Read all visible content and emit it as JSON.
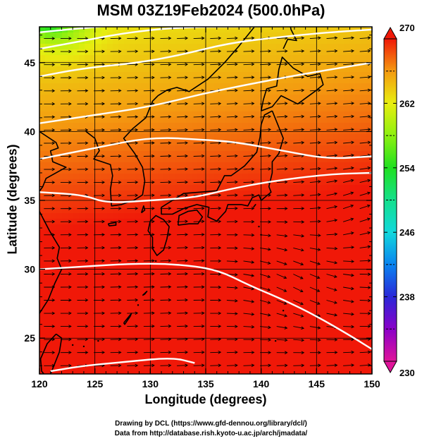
{
  "title": "MSM 03Z19Feb2024 (500.0hPa)",
  "xlabel": "Longitude (degrees)",
  "ylabel": "Latitude (degrees)",
  "credits": {
    "line1": "Drawing by DCL (https://www.gfd-dennou.org/library/dcl/)",
    "line2": "Data from http://database.rish.kyoto-u.ac.jp/arch/jmadata/"
  },
  "map": {
    "lon_range": [
      120,
      150
    ],
    "lat_range": [
      22.4,
      47.6
    ],
    "lon_ticks": [
      120,
      125,
      130,
      135,
      140,
      145,
      150
    ],
    "lat_ticks": [
      25,
      30,
      35,
      40,
      45
    ],
    "lon_tick_labels": [
      "120",
      "125",
      "130",
      "135",
      "140",
      "145",
      "150"
    ],
    "lat_tick_labels": [
      "25",
      "30",
      "35",
      "40",
      "45"
    ],
    "grid": true,
    "field": "temperature",
    "contour_lines": [
      {
        "points": [
          [
            120,
            47.2
          ],
          [
            125,
            47.6
          ],
          [
            130,
            47.8
          ]
        ]
      },
      {
        "points": [
          [
            120,
            46.0
          ],
          [
            124,
            46.6
          ],
          [
            128,
            47.2
          ],
          [
            133,
            47.6
          ],
          [
            140,
            47.6
          ],
          [
            146,
            47.8
          ],
          [
            150,
            47.6
          ]
        ],
        "label": "",
        "label_at": [
          125,
          44.2
        ]
      },
      {
        "points": [
          [
            120,
            44.0
          ],
          [
            124,
            44.6
          ],
          [
            129,
            45.0
          ],
          [
            133,
            45.6
          ],
          [
            137,
            46.4
          ],
          [
            141,
            46.8
          ],
          [
            146,
            47.2
          ],
          [
            150,
            47.4
          ]
        ],
        "label": "",
        "label_at": [
          131,
          44.0
        ]
      },
      {
        "points": [
          [
            120,
            40.6
          ],
          [
            125,
            41.2
          ],
          [
            130,
            41.8
          ],
          [
            135,
            42.8
          ],
          [
            140,
            43.6
          ],
          [
            144,
            44.2
          ],
          [
            150,
            45.0
          ]
        ],
        "label": "",
        "label_at": [
          133,
          40.0
        ]
      },
      {
        "points": [
          [
            120,
            38.0
          ],
          [
            125,
            38.8
          ],
          [
            130,
            39.6
          ],
          [
            135,
            39.4
          ],
          [
            138,
            39.2
          ],
          [
            142,
            38.6
          ],
          [
            146,
            38.0
          ],
          [
            150,
            38.2
          ]
        ]
      },
      {
        "points": [
          [
            120,
            35.6
          ],
          [
            124,
            35.4
          ],
          [
            126,
            34.8
          ],
          [
            130,
            35.0
          ],
          [
            134,
            35.2
          ],
          [
            137,
            35.8
          ],
          [
            141,
            36.4
          ],
          [
            146,
            36.9
          ],
          [
            150,
            37.0
          ]
        ],
        "label": "",
        "label_at": [
          131,
          35.5
        ]
      },
      {
        "points": [
          [
            120,
            30.0
          ],
          [
            124,
            30.2
          ],
          [
            128,
            30.4
          ],
          [
            132,
            30.4
          ],
          [
            136,
            30.0
          ],
          [
            139,
            28.8
          ],
          [
            142,
            27.8
          ],
          [
            145,
            26.6
          ],
          [
            148,
            25.2
          ],
          [
            150,
            24.2
          ]
        ],
        "label": "",
        "label_at": [
          140,
          28.4
        ]
      },
      {
        "points": [
          [
            121,
            22.6
          ],
          [
            124,
            23.0
          ],
          [
            128,
            23.3
          ],
          [
            132,
            23.6
          ],
          [
            134,
            23.2
          ]
        ],
        "label": "",
        "label_at": [
          120.6,
          22.7
        ]
      }
    ],
    "color_stops": [
      {
        "value": 230,
        "color": "#e0149a"
      },
      {
        "value": 234,
        "color": "#8a00c8"
      },
      {
        "value": 238,
        "color": "#2a28d8"
      },
      {
        "value": 242,
        "color": "#0a84f0"
      },
      {
        "value": 246,
        "color": "#12d8dc"
      },
      {
        "value": 250,
        "color": "#14e08c"
      },
      {
        "value": 254,
        "color": "#20e020"
      },
      {
        "value": 258,
        "color": "#8ef010"
      },
      {
        "value": 262,
        "color": "#e8ee10"
      },
      {
        "value": 266,
        "color": "#f49a10"
      },
      {
        "value": 270,
        "color": "#f01808"
      }
    ]
  },
  "colorbar": {
    "min": 230,
    "max": 270,
    "ticks": [
      230,
      238,
      246,
      254,
      262,
      270
    ],
    "tick_labels": [
      "230",
      "238",
      "246",
      "254",
      "262",
      "270"
    ],
    "minor_ticks": [
      234,
      242,
      250,
      258,
      266
    ]
  }
}
